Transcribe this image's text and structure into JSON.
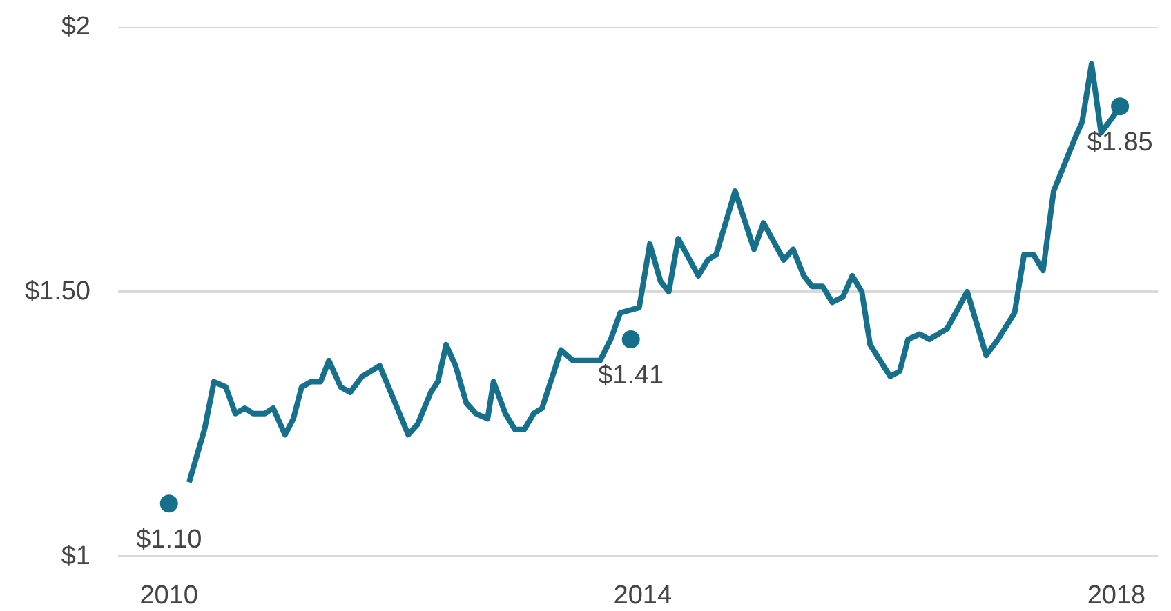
{
  "chart_data": {
    "type": "line",
    "xlim": [
      2009.57,
      2018.35
    ],
    "ylim": [
      1,
      2
    ],
    "xticks": [
      2010,
      2014,
      2018
    ],
    "yticks": [
      {
        "value": 1,
        "label": "$1"
      },
      {
        "value": 1.5,
        "label": "$1.50"
      },
      {
        "value": 2,
        "label": "$2"
      }
    ],
    "grid": "y",
    "series": [
      {
        "type": "line",
        "color": "#17708b",
        "line_style": "solid",
        "x": [
          2010.17,
          2010.3,
          2010.38,
          2010.48,
          2010.56,
          2010.64,
          2010.71,
          2010.81,
          2010.88,
          2010.98,
          2011.05,
          2011.12,
          2011.2,
          2011.28,
          2011.35,
          2011.45,
          2011.53,
          2011.63,
          2011.78,
          2012.02,
          2012.1,
          2012.21,
          2012.27,
          2012.34,
          2012.42,
          2012.51,
          2012.59,
          2012.69,
          2012.74,
          2012.84,
          2012.92,
          2013.0,
          2013.08,
          2013.15,
          2013.31,
          2013.41,
          2013.49,
          2013.64,
          2013.73,
          2013.81,
          2013.97,
          2014.06,
          2014.15,
          2014.22,
          2014.3,
          2014.47,
          2014.55,
          2014.62,
          2014.78,
          2014.94,
          2015.02,
          2015.19,
          2015.27,
          2015.36,
          2015.43,
          2015.52,
          2015.6,
          2015.69,
          2015.77,
          2015.85,
          2015.92,
          2016.09,
          2016.17,
          2016.24,
          2016.34,
          2016.42,
          2016.57,
          2016.74,
          2016.9,
          2017.0,
          2017.14,
          2017.22,
          2017.3,
          2017.38,
          2017.47,
          2017.56,
          2017.65,
          2017.71,
          2017.79,
          2017.87,
          2017.97,
          2018.03
        ],
        "values": [
          1.14,
          1.24,
          1.33,
          1.32,
          1.27,
          1.28,
          1.27,
          1.27,
          1.28,
          1.23,
          1.26,
          1.32,
          1.33,
          1.33,
          1.37,
          1.32,
          1.31,
          1.34,
          1.36,
          1.23,
          1.25,
          1.31,
          1.33,
          1.4,
          1.36,
          1.29,
          1.27,
          1.26,
          1.33,
          1.27,
          1.24,
          1.24,
          1.27,
          1.28,
          1.39,
          1.37,
          1.37,
          1.37,
          1.41,
          1.46,
          1.47,
          1.59,
          1.52,
          1.5,
          1.6,
          1.53,
          1.56,
          1.57,
          1.69,
          1.58,
          1.63,
          1.56,
          1.58,
          1.53,
          1.51,
          1.51,
          1.48,
          1.49,
          1.53,
          1.5,
          1.4,
          1.34,
          1.35,
          1.41,
          1.42,
          1.41,
          1.43,
          1.5,
          1.38,
          1.41,
          1.46,
          1.57,
          1.57,
          1.54,
          1.69,
          1.74,
          1.79,
          1.82,
          1.93,
          1.8,
          1.83,
          1.85
        ]
      },
      {
        "type": "scatter",
        "color": "#17708b",
        "marker": "circle",
        "x": [
          2010,
          2013.9,
          2018.03
        ],
        "values": [
          1.1,
          1.41,
          1.85
        ]
      }
    ],
    "annotations": [
      {
        "text": "$1.10",
        "x": 2010,
        "y": 1.1
      },
      {
        "text": "$1.41",
        "x": 2013.9,
        "y": 1.41
      },
      {
        "text": "$1.85",
        "x": 2018.03,
        "y": 1.85
      }
    ]
  }
}
